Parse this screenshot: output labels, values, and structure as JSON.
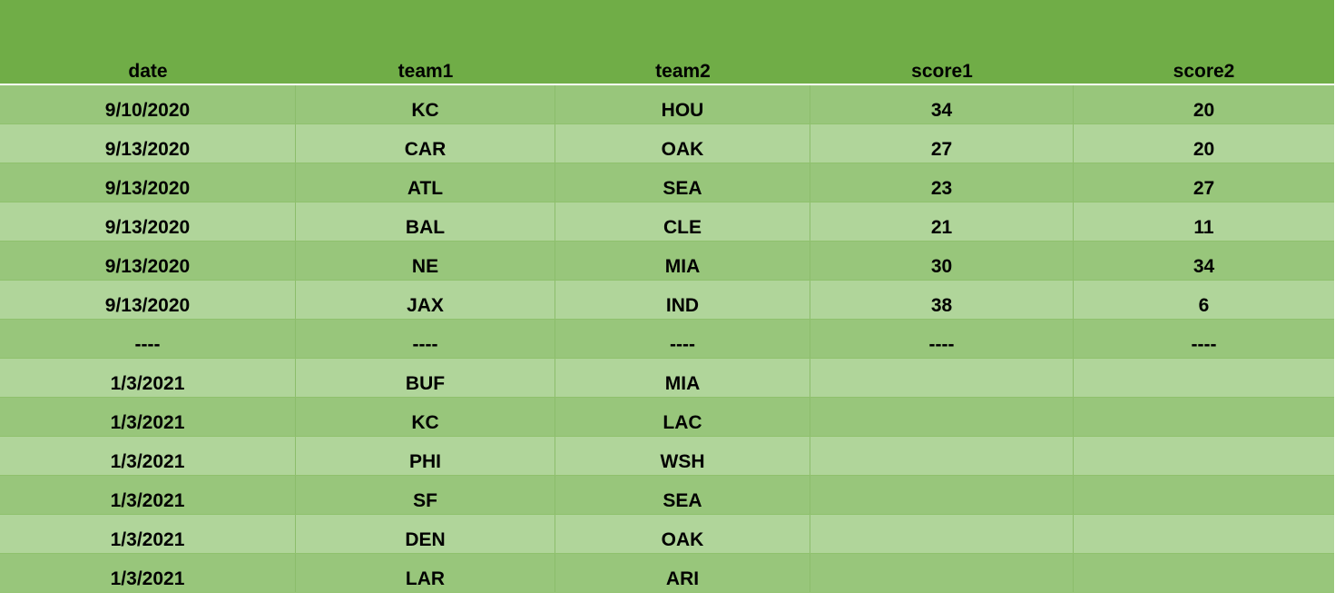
{
  "table": {
    "columns": [
      "date",
      "team1",
      "team2",
      "score1",
      "score2"
    ],
    "rows": [
      [
        "9/10/2020",
        "KC",
        "HOU",
        "34",
        "20"
      ],
      [
        "9/13/2020",
        "CAR",
        "OAK",
        "27",
        "20"
      ],
      [
        "9/13/2020",
        "ATL",
        "SEA",
        "23",
        "27"
      ],
      [
        "9/13/2020",
        "BAL",
        "CLE",
        "21",
        "11"
      ],
      [
        "9/13/2020",
        "NE",
        "MIA",
        "30",
        "34"
      ],
      [
        "9/13/2020",
        "JAX",
        "IND",
        "38",
        "6"
      ],
      [
        "----",
        "----",
        "----",
        "----",
        "----"
      ],
      [
        "1/3/2021",
        "BUF",
        "MIA",
        "",
        ""
      ],
      [
        "1/3/2021",
        "KC",
        "LAC",
        "",
        ""
      ],
      [
        "1/3/2021",
        "PHI",
        "WSH",
        "",
        ""
      ],
      [
        "1/3/2021",
        "SF",
        "SEA",
        "",
        ""
      ],
      [
        "1/3/2021",
        "DEN",
        "OAK",
        "",
        ""
      ],
      [
        "1/3/2021",
        "LAR",
        "ARI",
        "",
        ""
      ]
    ]
  },
  "colors": {
    "header_bg": "#70ad47",
    "row_dark": "#98c67b",
    "row_light": "#b0d59a"
  }
}
